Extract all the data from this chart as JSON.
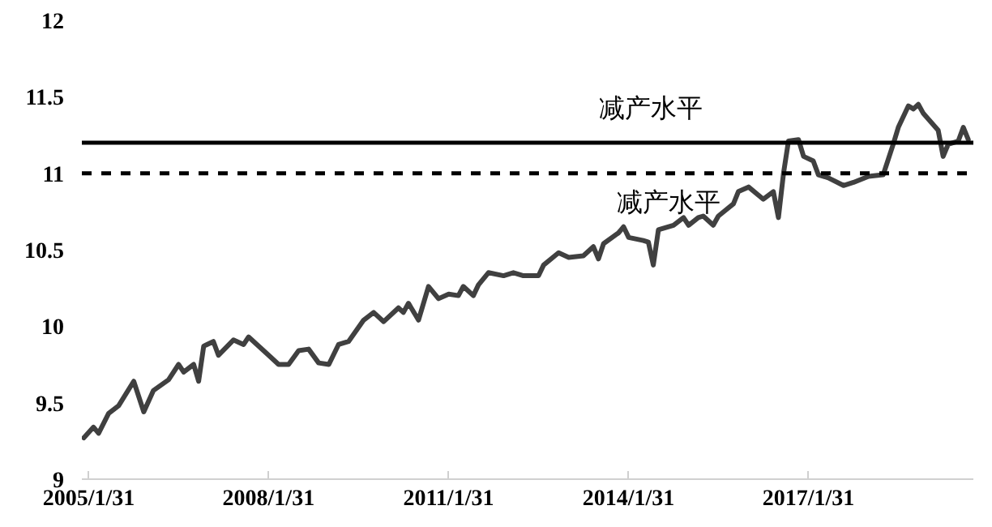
{
  "chart_data": {
    "type": "line",
    "x": [
      "2005-01",
      "2005-03",
      "2005-04",
      "2005-06",
      "2005-08",
      "2005-11",
      "2006-01",
      "2006-03",
      "2006-06",
      "2006-08",
      "2006-09",
      "2006-11",
      "2006-12",
      "2007-01",
      "2007-03",
      "2007-04",
      "2007-07",
      "2007-09",
      "2007-10",
      "2008-02",
      "2008-04",
      "2008-06",
      "2008-08",
      "2008-10",
      "2008-12",
      "2009-02",
      "2009-04",
      "2009-06",
      "2009-09",
      "2009-11",
      "2010-01",
      "2010-04",
      "2010-05",
      "2010-06",
      "2010-08",
      "2010-10",
      "2010-12",
      "2011-02",
      "2011-04",
      "2011-05",
      "2011-07",
      "2011-08",
      "2011-10",
      "2012-01",
      "2012-03",
      "2012-05",
      "2012-08",
      "2012-09",
      "2012-12",
      "2013-02",
      "2013-05",
      "2013-07",
      "2013-08",
      "2013-09",
      "2013-12",
      "2014-01",
      "2014-02",
      "2014-05",
      "2014-06",
      "2014-07",
      "2014-08",
      "2014-11",
      "2015-01",
      "2015-02",
      "2015-04",
      "2015-05",
      "2015-07",
      "2015-08",
      "2015-11",
      "2015-12",
      "2016-02",
      "2016-05",
      "2016-07",
      "2016-08",
      "2016-09",
      "2016-10",
      "2016-12",
      "2017-01",
      "2017-03",
      "2017-04",
      "2017-06",
      "2017-09",
      "2017-11",
      "2018-02",
      "2018-05",
      "2018-07",
      "2018-08",
      "2018-10",
      "2018-11",
      "2018-12",
      "2019-01",
      "2019-04",
      "2019-05",
      "2019-06",
      "2019-08",
      "2019-09",
      "2019-10"
    ],
    "series": [
      {
        "color": "#404040",
        "values": [
          9.27,
          9.34,
          9.3,
          9.43,
          9.48,
          9.64,
          9.44,
          9.58,
          9.65,
          9.75,
          9.7,
          9.75,
          9.64,
          9.87,
          9.9,
          9.81,
          9.91,
          9.88,
          9.93,
          9.81,
          9.75,
          9.75,
          9.84,
          9.85,
          9.76,
          9.75,
          9.88,
          9.9,
          10.04,
          10.09,
          10.03,
          10.12,
          10.09,
          10.15,
          10.04,
          10.26,
          10.18,
          10.21,
          10.2,
          10.26,
          10.2,
          10.27,
          10.35,
          10.33,
          10.35,
          10.33,
          10.33,
          10.4,
          10.48,
          10.45,
          10.46,
          10.52,
          10.44,
          10.54,
          10.61,
          10.65,
          10.58,
          10.56,
          10.55,
          10.4,
          10.63,
          10.66,
          10.71,
          10.66,
          10.71,
          10.72,
          10.66,
          10.72,
          10.8,
          10.88,
          10.91,
          10.83,
          10.88,
          10.71,
          11.0,
          11.21,
          11.22,
          11.11,
          11.08,
          10.99,
          10.97,
          10.92,
          10.94,
          10.98,
          10.99,
          11.19,
          11.3,
          11.44,
          11.42,
          11.45,
          11.39,
          11.28,
          11.11,
          11.19,
          11.21,
          11.3,
          11.22
        ]
      }
    ],
    "xlim": [
      "2004-12-20",
      "2019-11-01"
    ],
    "xticks": [
      {
        "value": "2005-01-31",
        "label": "2005/1/31"
      },
      {
        "value": "2008-01-31",
        "label": "2008/1/31"
      },
      {
        "value": "2011-01-31",
        "label": "2011/1/31"
      },
      {
        "value": "2014-01-31",
        "label": "2014/1/31"
      },
      {
        "value": "2017-01-31",
        "label": "2017/1/31"
      }
    ],
    "ylim": [
      9,
      12
    ],
    "yticks": [
      9,
      9.5,
      10,
      10.5,
      11,
      11.5,
      12
    ],
    "ref_lines": [
      {
        "axis": "y",
        "value": 11.2,
        "label": "减产水平",
        "color": "#000000",
        "line_style": "solid"
      },
      {
        "axis": "y",
        "value": 11.0,
        "label": "减产水平",
        "color": "#000000",
        "line_style": "dashed"
      }
    ],
    "grid": false,
    "marker": "none",
    "line_style": "solid"
  }
}
